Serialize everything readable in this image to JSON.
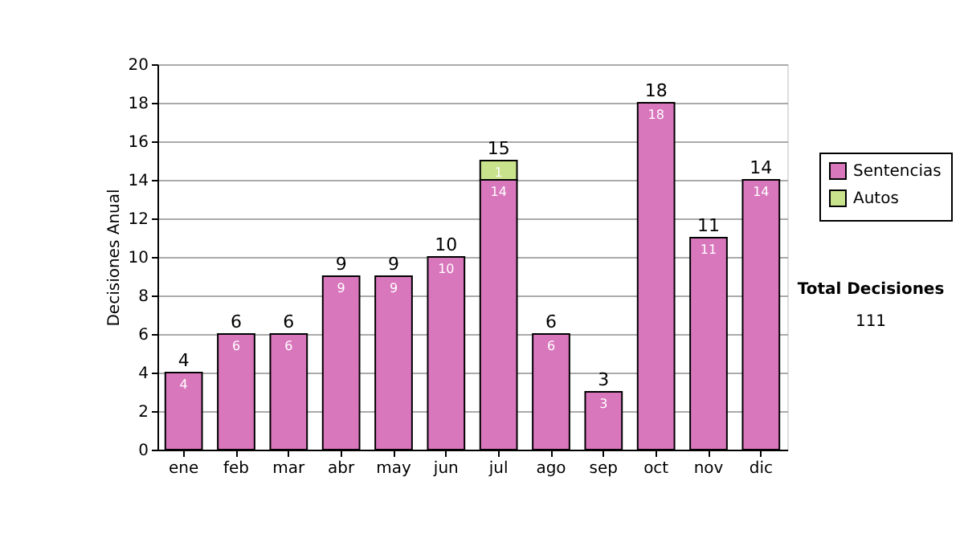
{
  "chart_data": {
    "type": "bar",
    "stacked": true,
    "ylabel": "Decisiones Anual",
    "categories": [
      "ene",
      "feb",
      "mar",
      "abr",
      "may",
      "jun",
      "jul",
      "ago",
      "sep",
      "oct",
      "nov",
      "dic"
    ],
    "series": [
      {
        "name": "Sentencias",
        "color": "#d977bd",
        "values": [
          4,
          6,
          6,
          9,
          9,
          10,
          14,
          6,
          3,
          18,
          11,
          14
        ]
      },
      {
        "name": "Autos",
        "color": "#c9e28c",
        "values": [
          null,
          null,
          null,
          null,
          null,
          null,
          1,
          null,
          null,
          null,
          null,
          null
        ]
      }
    ],
    "totals": [
      "4",
      "6",
      "6",
      "9",
      "9",
      "10",
      "15",
      "6",
      "3",
      "18",
      "11",
      "14"
    ],
    "data_labels": true,
    "ylim": [
      0,
      20
    ],
    "yticks": [
      0,
      2,
      4,
      6,
      8,
      10,
      12,
      14,
      16,
      18,
      20
    ],
    "grid": "y",
    "legend": "right",
    "annotations": [
      "Total Decisiones",
      "111"
    ]
  }
}
